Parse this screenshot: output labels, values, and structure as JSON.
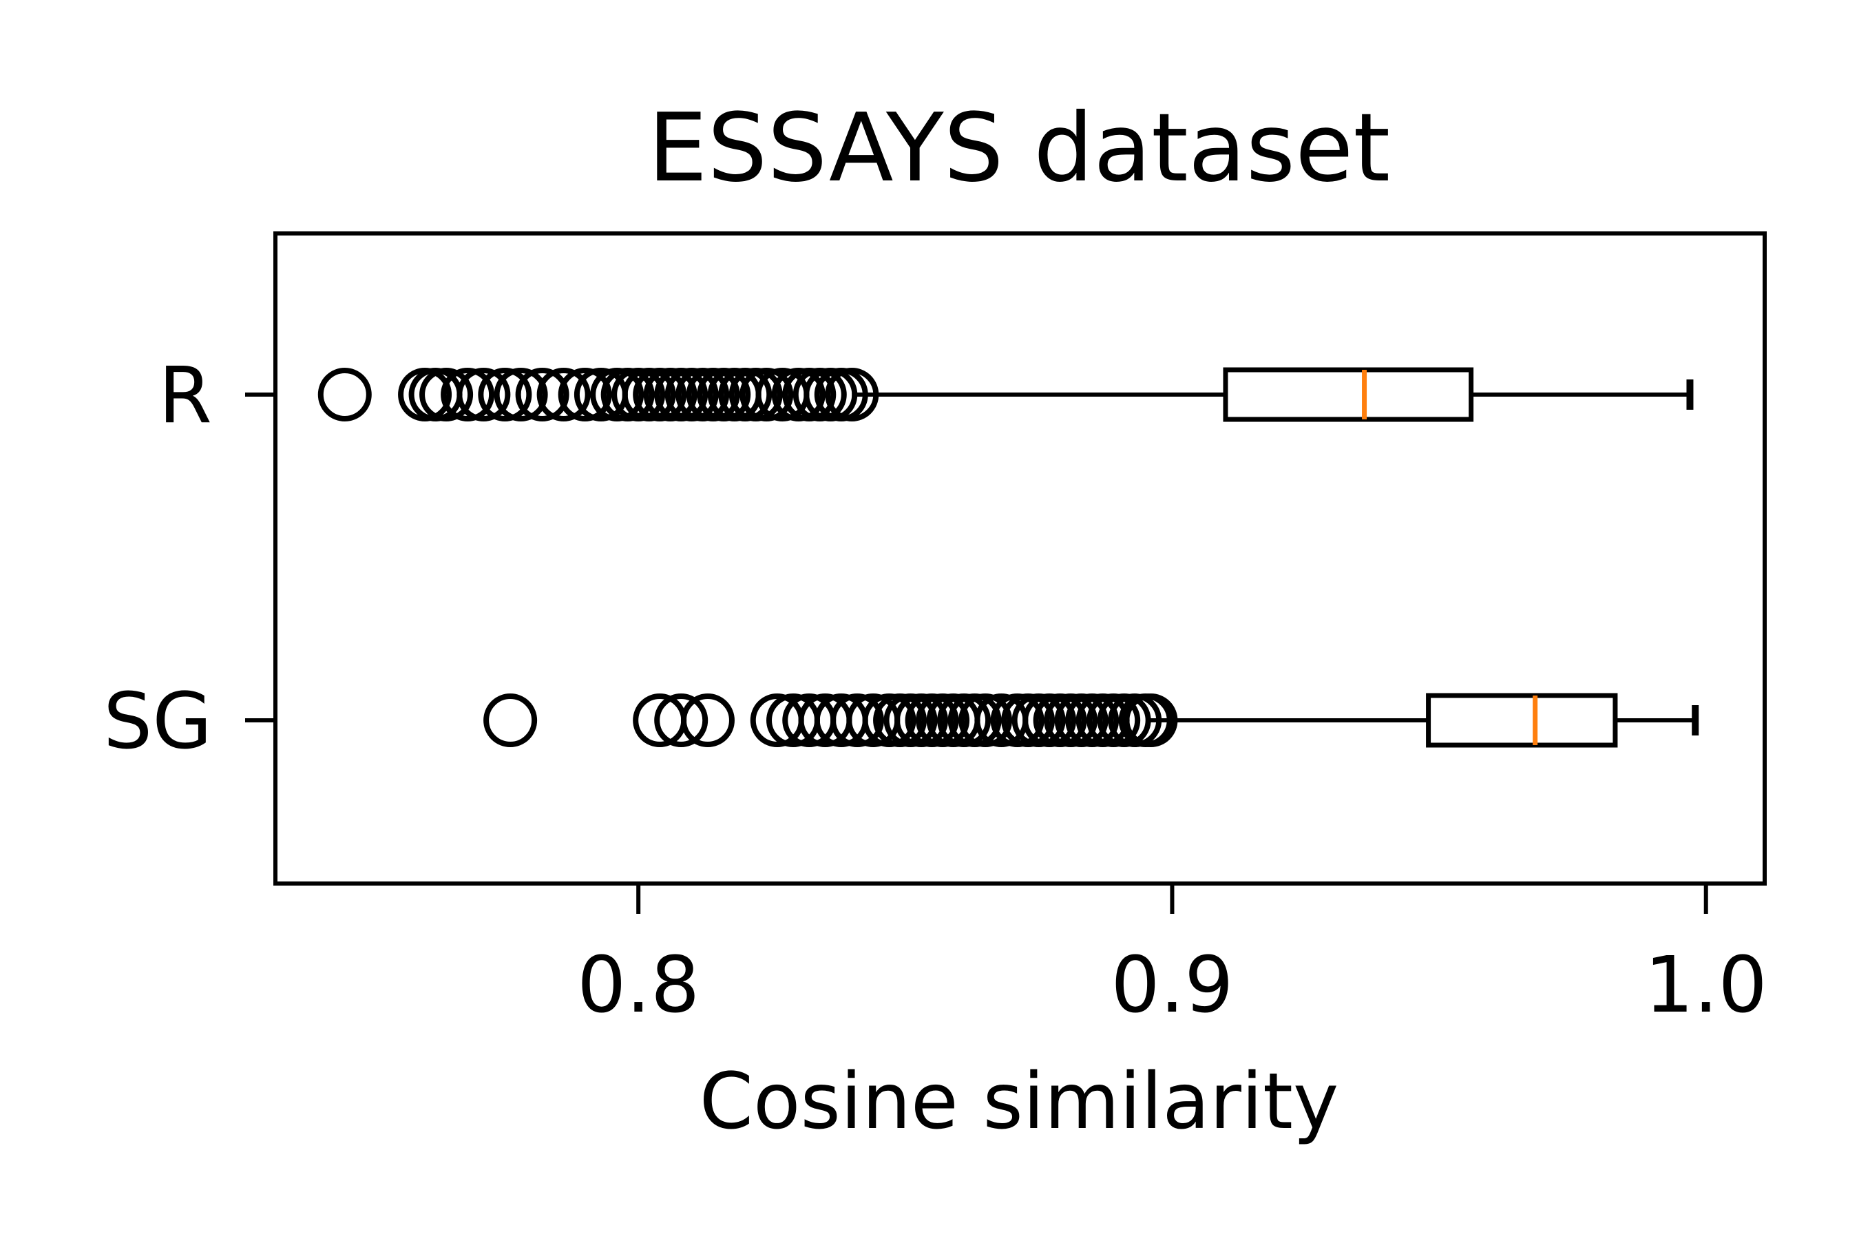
{
  "chart_data": {
    "type": "boxplot",
    "orientation": "horizontal",
    "title": "ESSAYS dataset",
    "xlabel": "Cosine similarity",
    "ylabel": "",
    "xlim": [
      0.732,
      1.011
    ],
    "xticks": [
      0.8,
      0.9,
      1.0
    ],
    "xtick_labels": [
      "0.8",
      "0.9",
      "1.0"
    ],
    "categories": [
      "R",
      "SG"
    ],
    "grid": false,
    "colors": {
      "box": "#000000",
      "median": "#ff7f0e",
      "background": "#ffffff"
    },
    "series": [
      {
        "name": "R",
        "whisker_low": 0.84,
        "q1": 0.91,
        "median": 0.936,
        "q3": 0.956,
        "whisker_high": 0.997,
        "outliers": [
          0.745,
          0.76,
          0.762,
          0.764,
          0.768,
          0.771,
          0.775,
          0.778,
          0.782,
          0.786,
          0.79,
          0.793,
          0.796,
          0.798,
          0.8,
          0.802,
          0.804,
          0.806,
          0.808,
          0.81,
          0.812,
          0.814,
          0.816,
          0.818,
          0.82,
          0.822,
          0.824,
          0.827,
          0.83,
          0.832,
          0.834,
          0.836,
          0.838,
          0.84
        ]
      },
      {
        "name": "SG",
        "whisker_low": 0.896,
        "q1": 0.948,
        "median": 0.968,
        "q3": 0.983,
        "whisker_high": 0.998,
        "outliers": [
          0.776,
          0.804,
          0.808,
          0.813,
          0.826,
          0.829,
          0.832,
          0.835,
          0.838,
          0.841,
          0.844,
          0.847,
          0.849,
          0.851,
          0.853,
          0.855,
          0.857,
          0.859,
          0.861,
          0.863,
          0.865,
          0.868,
          0.871,
          0.873,
          0.875,
          0.877,
          0.879,
          0.881,
          0.883,
          0.885,
          0.887,
          0.889,
          0.891,
          0.893,
          0.895,
          0.896
        ]
      }
    ]
  }
}
